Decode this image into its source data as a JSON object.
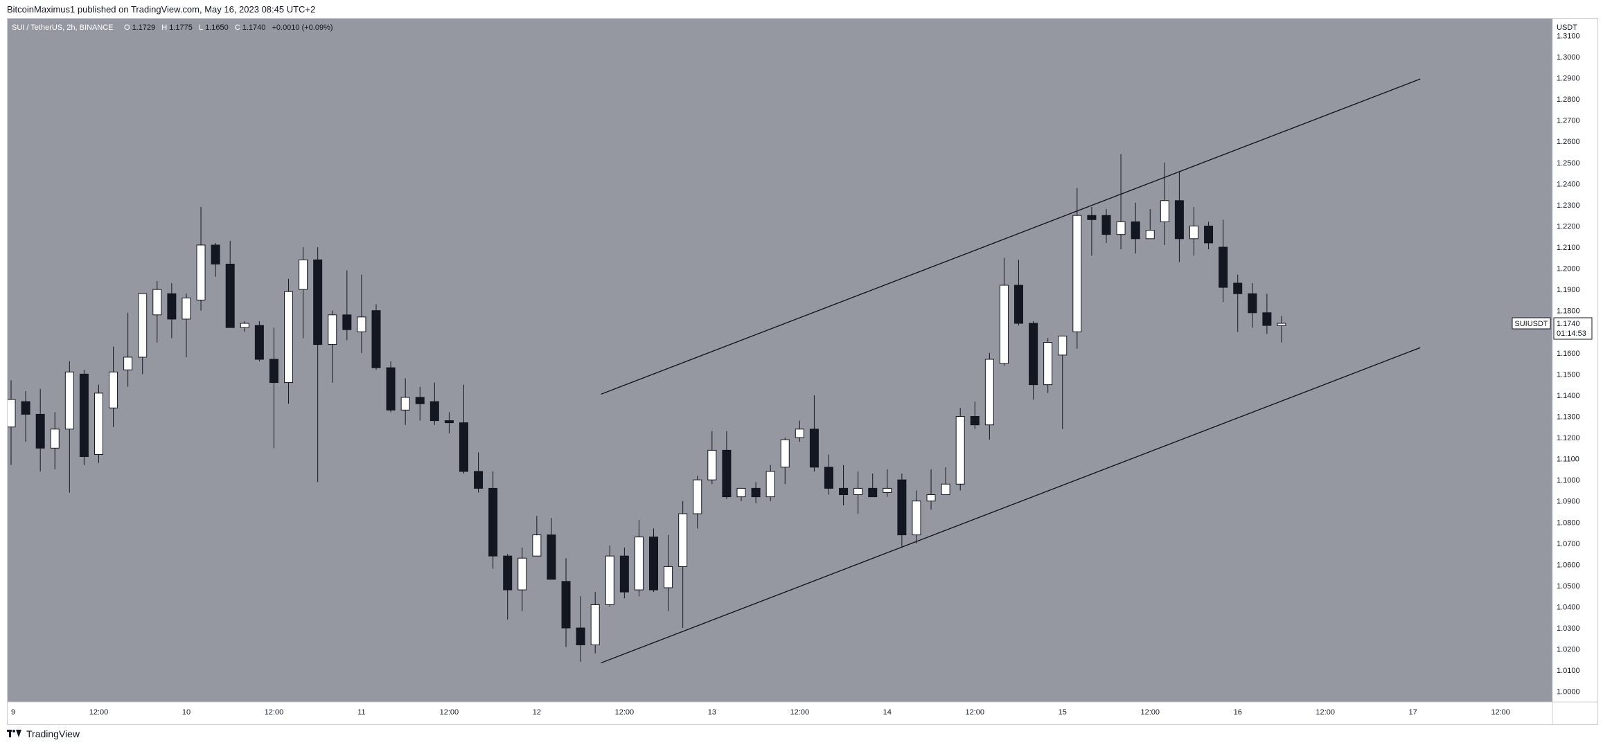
{
  "header": {
    "publisher": "BitcoinMaximus1 published on TradingView.com, May 16, 2023 08:45 UTC+2"
  },
  "chart_data": {
    "type": "candlestick",
    "symbol_line": "SUI / TetherUS, 2h, BINANCE",
    "ohlc_labels": {
      "o_label": "O",
      "o": "1.1729",
      "h_label": "H",
      "h": "1.1775",
      "l_label": "L",
      "l": "1.1650",
      "c_label": "C",
      "c": "1.1740",
      "change": "+0.0010 (+0.09%)"
    },
    "currency": "USDT",
    "ylim": [
      0.995,
      1.318
    ],
    "y_ticks": [
      "1.3100",
      "1.3000",
      "1.2900",
      "1.2800",
      "1.2700",
      "1.2600",
      "1.2500",
      "1.2400",
      "1.2300",
      "1.2200",
      "1.2100",
      "1.2000",
      "1.1900",
      "1.1800",
      "1.1600",
      "1.1500",
      "1.1400",
      "1.1300",
      "1.1200",
      "1.1100",
      "1.1000",
      "1.0900",
      "1.0800",
      "1.0700",
      "1.0600",
      "1.0500",
      "1.0400",
      "1.0300",
      "1.0200",
      "1.0100",
      "1.0000"
    ],
    "x_ticks": [
      {
        "label": "9",
        "bar": 0
      },
      {
        "label": "12:00",
        "bar": 6
      },
      {
        "label": "10",
        "bar": 12
      },
      {
        "label": "12:00",
        "bar": 18
      },
      {
        "label": "11",
        "bar": 24
      },
      {
        "label": "12:00",
        "bar": 30
      },
      {
        "label": "12",
        "bar": 36
      },
      {
        "label": "12:00",
        "bar": 42
      },
      {
        "label": "13",
        "bar": 48
      },
      {
        "label": "12:00",
        "bar": 54
      },
      {
        "label": "14",
        "bar": 60
      },
      {
        "label": "12:00",
        "bar": 66
      },
      {
        "label": "15",
        "bar": 72
      },
      {
        "label": "12:00",
        "bar": 78
      },
      {
        "label": "16",
        "bar": 84
      },
      {
        "label": "12:00",
        "bar": 90
      },
      {
        "label": "17",
        "bar": 96
      },
      {
        "label": "12:00",
        "bar": 102
      }
    ],
    "price_badge": {
      "symbol": "SUIUSDT",
      "price": "1.1740",
      "countdown": "01:14:53"
    },
    "candles": [
      {
        "o": 1.125,
        "h": 1.147,
        "l": 1.107,
        "c": 1.138
      },
      {
        "o": 1.137,
        "h": 1.142,
        "l": 1.118,
        "c": 1.131
      },
      {
        "o": 1.131,
        "h": 1.143,
        "l": 1.104,
        "c": 1.115
      },
      {
        "o": 1.115,
        "h": 1.132,
        "l": 1.105,
        "c": 1.124
      },
      {
        "o": 1.124,
        "h": 1.156,
        "l": 1.094,
        "c": 1.151
      },
      {
        "o": 1.15,
        "h": 1.152,
        "l": 1.107,
        "c": 1.111
      },
      {
        "o": 1.112,
        "h": 1.145,
        "l": 1.108,
        "c": 1.141
      },
      {
        "o": 1.134,
        "h": 1.163,
        "l": 1.125,
        "c": 1.151
      },
      {
        "o": 1.152,
        "h": 1.179,
        "l": 1.144,
        "c": 1.158
      },
      {
        "o": 1.158,
        "h": 1.186,
        "l": 1.15,
        "c": 1.188
      },
      {
        "o": 1.178,
        "h": 1.194,
        "l": 1.165,
        "c": 1.19
      },
      {
        "o": 1.188,
        "h": 1.193,
        "l": 1.167,
        "c": 1.176
      },
      {
        "o": 1.176,
        "h": 1.188,
        "l": 1.158,
        "c": 1.186
      },
      {
        "o": 1.185,
        "h": 1.229,
        "l": 1.18,
        "c": 1.211
      },
      {
        "o": 1.211,
        "h": 1.212,
        "l": 1.196,
        "c": 1.202
      },
      {
        "o": 1.202,
        "h": 1.213,
        "l": 1.173,
        "c": 1.172
      },
      {
        "o": 1.172,
        "h": 1.175,
        "l": 1.17,
        "c": 1.174
      },
      {
        "o": 1.173,
        "h": 1.175,
        "l": 1.156,
        "c": 1.157
      },
      {
        "o": 1.157,
        "h": 1.172,
        "l": 1.115,
        "c": 1.146
      },
      {
        "o": 1.146,
        "h": 1.195,
        "l": 1.136,
        "c": 1.189
      },
      {
        "o": 1.19,
        "h": 1.21,
        "l": 1.167,
        "c": 1.204
      },
      {
        "o": 1.204,
        "h": 1.21,
        "l": 1.099,
        "c": 1.164
      },
      {
        "o": 1.164,
        "h": 1.18,
        "l": 1.146,
        "c": 1.178
      },
      {
        "o": 1.178,
        "h": 1.199,
        "l": 1.166,
        "c": 1.171
      },
      {
        "o": 1.17,
        "h": 1.197,
        "l": 1.16,
        "c": 1.177
      },
      {
        "o": 1.18,
        "h": 1.183,
        "l": 1.152,
        "c": 1.153
      },
      {
        "o": 1.153,
        "h": 1.156,
        "l": 1.132,
        "c": 1.133
      },
      {
        "o": 1.133,
        "h": 1.148,
        "l": 1.126,
        "c": 1.139
      },
      {
        "o": 1.139,
        "h": 1.144,
        "l": 1.128,
        "c": 1.136
      },
      {
        "o": 1.137,
        "h": 1.146,
        "l": 1.126,
        "c": 1.128
      },
      {
        "o": 1.128,
        "h": 1.132,
        "l": 1.122,
        "c": 1.127
      },
      {
        "o": 1.127,
        "h": 1.145,
        "l": 1.103,
        "c": 1.104
      },
      {
        "o": 1.104,
        "h": 1.113,
        "l": 1.094,
        "c": 1.096
      },
      {
        "o": 1.096,
        "h": 1.104,
        "l": 1.058,
        "c": 1.064
      },
      {
        "o": 1.064,
        "h": 1.065,
        "l": 1.034,
        "c": 1.048
      },
      {
        "o": 1.048,
        "h": 1.068,
        "l": 1.038,
        "c": 1.063
      },
      {
        "o": 1.064,
        "h": 1.083,
        "l": 1.064,
        "c": 1.074
      },
      {
        "o": 1.074,
        "h": 1.082,
        "l": 1.055,
        "c": 1.053
      },
      {
        "o": 1.052,
        "h": 1.063,
        "l": 1.021,
        "c": 1.03
      },
      {
        "o": 1.03,
        "h": 1.045,
        "l": 1.014,
        "c": 1.022
      },
      {
        "o": 1.022,
        "h": 1.047,
        "l": 1.018,
        "c": 1.041
      },
      {
        "o": 1.041,
        "h": 1.069,
        "l": 1.04,
        "c": 1.064
      },
      {
        "o": 1.064,
        "h": 1.068,
        "l": 1.044,
        "c": 1.047
      },
      {
        "o": 1.048,
        "h": 1.081,
        "l": 1.045,
        "c": 1.073
      },
      {
        "o": 1.073,
        "h": 1.077,
        "l": 1.047,
        "c": 1.048
      },
      {
        "o": 1.049,
        "h": 1.074,
        "l": 1.038,
        "c": 1.059
      },
      {
        "o": 1.059,
        "h": 1.09,
        "l": 1.03,
        "c": 1.084
      },
      {
        "o": 1.084,
        "h": 1.102,
        "l": 1.077,
        "c": 1.1
      },
      {
        "o": 1.1,
        "h": 1.123,
        "l": 1.098,
        "c": 1.114
      },
      {
        "o": 1.114,
        "h": 1.123,
        "l": 1.091,
        "c": 1.092
      },
      {
        "o": 1.092,
        "h": 1.096,
        "l": 1.09,
        "c": 1.096
      },
      {
        "o": 1.096,
        "h": 1.099,
        "l": 1.089,
        "c": 1.092
      },
      {
        "o": 1.092,
        "h": 1.107,
        "l": 1.09,
        "c": 1.104
      },
      {
        "o": 1.106,
        "h": 1.12,
        "l": 1.098,
        "c": 1.119
      },
      {
        "o": 1.12,
        "h": 1.128,
        "l": 1.118,
        "c": 1.124
      },
      {
        "o": 1.124,
        "h": 1.14,
        "l": 1.104,
        "c": 1.106
      },
      {
        "o": 1.106,
        "h": 1.112,
        "l": 1.093,
        "c": 1.096
      },
      {
        "o": 1.096,
        "h": 1.107,
        "l": 1.088,
        "c": 1.093
      },
      {
        "o": 1.093,
        "h": 1.104,
        "l": 1.084,
        "c": 1.096
      },
      {
        "o": 1.096,
        "h": 1.103,
        "l": 1.092,
        "c": 1.092
      },
      {
        "o": 1.094,
        "h": 1.105,
        "l": 1.092,
        "c": 1.096
      },
      {
        "o": 1.1,
        "h": 1.103,
        "l": 1.068,
        "c": 1.074
      },
      {
        "o": 1.074,
        "h": 1.095,
        "l": 1.07,
        "c": 1.09
      },
      {
        "o": 1.09,
        "h": 1.105,
        "l": 1.086,
        "c": 1.093
      },
      {
        "o": 1.093,
        "h": 1.106,
        "l": 1.093,
        "c": 1.098
      },
      {
        "o": 1.098,
        "h": 1.134,
        "l": 1.095,
        "c": 1.13
      },
      {
        "o": 1.13,
        "h": 1.137,
        "l": 1.124,
        "c": 1.126
      },
      {
        "o": 1.126,
        "h": 1.16,
        "l": 1.119,
        "c": 1.157
      },
      {
        "o": 1.155,
        "h": 1.205,
        "l": 1.154,
        "c": 1.192
      },
      {
        "o": 1.192,
        "h": 1.204,
        "l": 1.173,
        "c": 1.174
      },
      {
        "o": 1.174,
        "h": 1.175,
        "l": 1.138,
        "c": 1.145
      },
      {
        "o": 1.145,
        "h": 1.167,
        "l": 1.141,
        "c": 1.165
      },
      {
        "o": 1.159,
        "h": 1.168,
        "l": 1.124,
        "c": 1.168
      },
      {
        "o": 1.17,
        "h": 1.238,
        "l": 1.162,
        "c": 1.225
      },
      {
        "o": 1.225,
        "h": 1.229,
        "l": 1.206,
        "c": 1.223
      },
      {
        "o": 1.225,
        "h": 1.228,
        "l": 1.212,
        "c": 1.216
      },
      {
        "o": 1.216,
        "h": 1.254,
        "l": 1.209,
        "c": 1.222
      },
      {
        "o": 1.222,
        "h": 1.231,
        "l": 1.207,
        "c": 1.214
      },
      {
        "o": 1.214,
        "h": 1.228,
        "l": 1.216,
        "c": 1.218
      },
      {
        "o": 1.222,
        "h": 1.25,
        "l": 1.211,
        "c": 1.232
      },
      {
        "o": 1.232,
        "h": 1.246,
        "l": 1.203,
        "c": 1.214
      },
      {
        "o": 1.214,
        "h": 1.229,
        "l": 1.206,
        "c": 1.22
      },
      {
        "o": 1.22,
        "h": 1.222,
        "l": 1.209,
        "c": 1.212
      },
      {
        "o": 1.21,
        "h": 1.223,
        "l": 1.184,
        "c": 1.191
      },
      {
        "o": 1.193,
        "h": 1.197,
        "l": 1.17,
        "c": 1.188
      },
      {
        "o": 1.188,
        "h": 1.193,
        "l": 1.172,
        "c": 1.179
      },
      {
        "o": 1.179,
        "h": 1.188,
        "l": 1.169,
        "c": 1.173
      },
      {
        "o": 1.1729,
        "h": 1.1775,
        "l": 1.165,
        "c": 1.174
      }
    ],
    "trendlines": [
      {
        "name": "upper channel",
        "b1": 40.4,
        "p1": 1.1405,
        "b2": 96.5,
        "p2": 1.2895
      },
      {
        "name": "lower channel",
        "b1": 40.4,
        "p1": 1.0135,
        "b2": 96.5,
        "p2": 1.1625
      }
    ],
    "colors": {
      "plot_bg": "#9598a1",
      "up": "#ffffff",
      "down": "#131722",
      "line": "#131722",
      "grid_text": "#131722"
    }
  },
  "footer": {
    "brand": "TradingView",
    "logo_icon": "tradingview-logo-icon"
  }
}
